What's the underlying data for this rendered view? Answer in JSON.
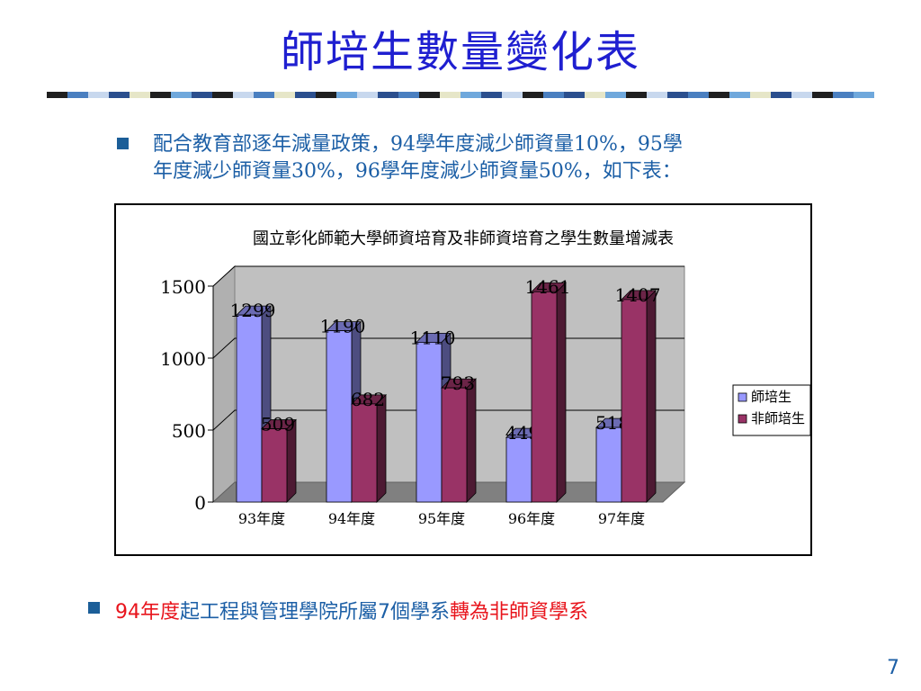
{
  "slide": {
    "title": "師培生數量變化表",
    "paragraph_line1": "配合教育部逐年減量政策，94學年度減少師資量10%，95學",
    "paragraph_line2": "年度減少師資量30%，96學年度減少師資量50%，如下表：",
    "bottom_parts": [
      {
        "text": "94",
        "color": "#e8141c"
      },
      {
        "text": "年度",
        "color": "#e8141c"
      },
      {
        "text": "起工程與管理學院所屬",
        "color": "#1c5fa6"
      },
      {
        "text": "7",
        "color": "#1c5fa6"
      },
      {
        "text": "個學系",
        "color": "#1c5fa6"
      },
      {
        "text": "轉為非師資學系",
        "color": "#e8141c"
      }
    ],
    "page_number": "7",
    "stripe_colors": [
      "#1f1f1f",
      "#4a7fc0",
      "#c8d8ee",
      "#2b4f8e",
      "#e6e6c8",
      "#1f1f1f",
      "#6fa8dc",
      "#2b4f8e",
      "#1f1f1f",
      "#c8d8ee",
      "#4a7fc0",
      "#e6e6c8",
      "#2b4f8e",
      "#1f1f1f",
      "#6fa8dc",
      "#c8d8ee",
      "#2b4f8e",
      "#4a7fc0",
      "#1f1f1f",
      "#e6e6c8",
      "#6fa8dc",
      "#2b4f8e",
      "#c8d8ee",
      "#1f1f1f",
      "#4a7fc0",
      "#2b4f8e",
      "#e6e6c8",
      "#6fa8dc",
      "#1f1f1f",
      "#c8d8ee",
      "#2b4f8e",
      "#4a7fc0",
      "#1f1f1f",
      "#6fa8dc",
      "#e6e6c8",
      "#2b4f8e",
      "#c8d8ee",
      "#1f1f1f",
      "#4a7fc0",
      "#6fa8dc"
    ]
  },
  "chart_data": {
    "type": "bar",
    "title": "國立彰化師範大學師資培育及非師資培育之學生數量增減表",
    "categories": [
      "93年度",
      "94年度",
      "95年度",
      "96年度",
      "97年度"
    ],
    "series": [
      {
        "name": "師培生",
        "values": [
          1299,
          1190,
          1110,
          449,
          518
        ],
        "color": "#9999ff"
      },
      {
        "name": "非師培生",
        "values": [
          509,
          682,
          793,
          1461,
          1407
        ],
        "color": "#993366"
      }
    ],
    "ylim": [
      0,
      1500
    ],
    "yticks": [
      "0",
      "500",
      "1000",
      "1500"
    ],
    "grid": true,
    "legend_position": "right",
    "three_d": true
  }
}
